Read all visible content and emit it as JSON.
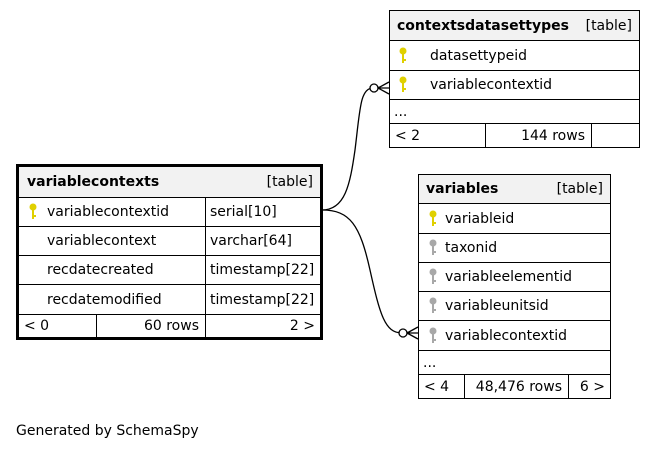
{
  "tables": {
    "contextsdatasettypes": {
      "name": "contextsdatasettypes",
      "kind": "[table]",
      "columns": [
        {
          "name": "datasettypeid",
          "key": "primary"
        },
        {
          "name": "variablecontextid",
          "key": "primary"
        }
      ],
      "ellipsis": "...",
      "footer": {
        "parents": "< 2",
        "rows": "144 rows",
        "children": ""
      }
    },
    "variablecontexts": {
      "name": "variablecontexts",
      "kind": "[table]",
      "columns": [
        {
          "name": "variablecontextid",
          "type": "serial[10]",
          "key": "primary"
        },
        {
          "name": "variablecontext",
          "type": "varchar[64]",
          "key": "none"
        },
        {
          "name": "recdatecreated",
          "type": "timestamp[22]",
          "key": "none"
        },
        {
          "name": "recdatemodified",
          "type": "timestamp[22]",
          "key": "none"
        }
      ],
      "footer": {
        "parents": "< 0",
        "rows": "60 rows",
        "children": "2 >"
      }
    },
    "variables": {
      "name": "variables",
      "kind": "[table]",
      "columns": [
        {
          "name": "variableid",
          "key": "primary"
        },
        {
          "name": "taxonid",
          "key": "foreign"
        },
        {
          "name": "variableelementid",
          "key": "foreign"
        },
        {
          "name": "variableunitsid",
          "key": "foreign"
        },
        {
          "name": "variablecontextid",
          "key": "foreign"
        }
      ],
      "ellipsis": "...",
      "footer": {
        "parents": "< 4",
        "rows": "48,476 rows",
        "children": "6 >"
      }
    }
  },
  "colors": {
    "primary_key": "#e0d000",
    "foreign_key": "#a8a8a8",
    "header_bg": "#f2f2f2"
  },
  "generated_by": "Generated by SchemaSpy"
}
